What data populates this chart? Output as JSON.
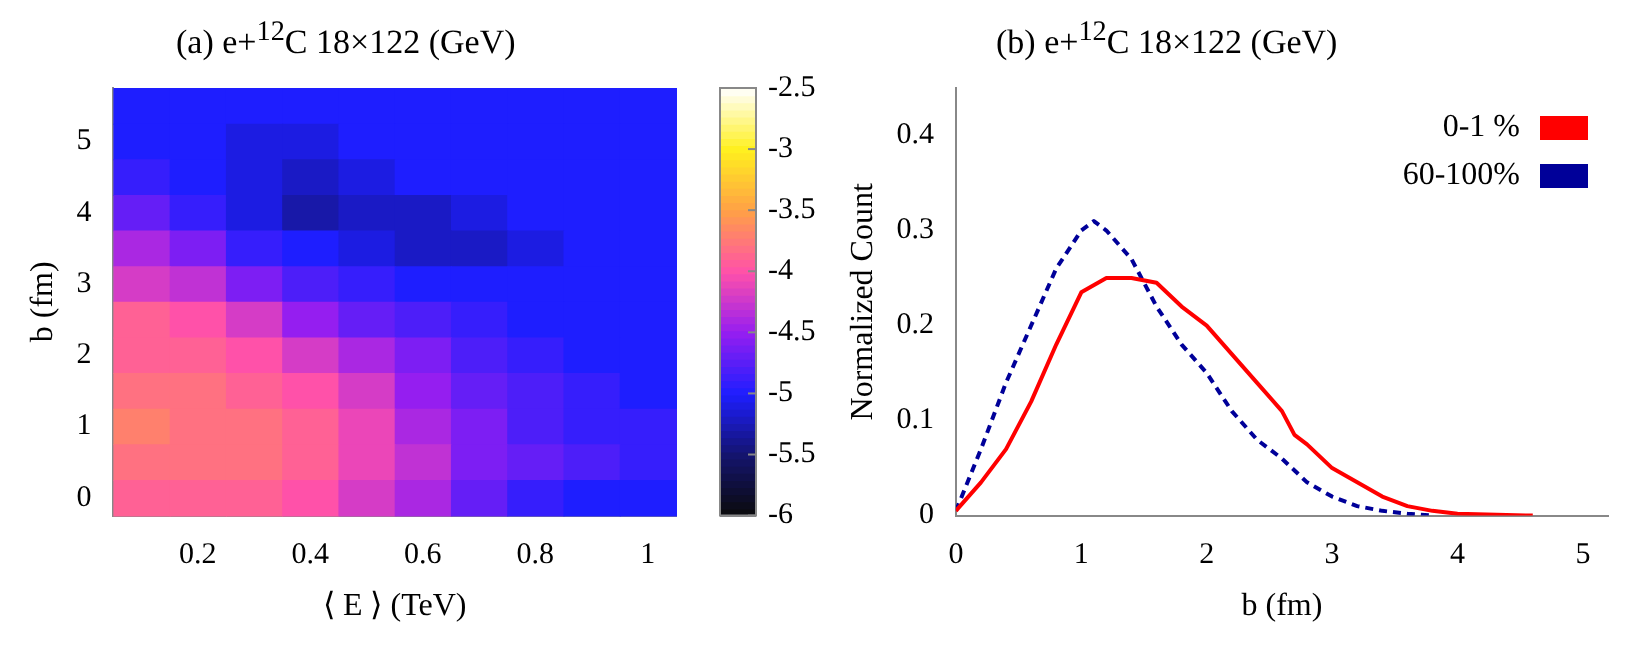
{
  "chart_data": [
    {
      "type": "heatmap",
      "title": "(a) e+$^{12}$C 18×122 (GeV)",
      "xlabel": "⟨ E ⟩ (TeV)",
      "ylabel": "b (fm)",
      "categories": [
        null,
        "0.2",
        null,
        "0.4",
        null,
        "0.6",
        null,
        "0.8",
        null,
        "1"
      ],
      "y_categories": [
        null,
        "5",
        null,
        "4",
        null,
        "3",
        null,
        "2",
        null,
        "1",
        null,
        "0"
      ],
      "cells": [
        [
          -5.0,
          -5.0,
          -5.0,
          -5.0,
          -5.0,
          -5.0,
          -5.0,
          -5.0,
          -5.0,
          -5.0
        ],
        [
          -5.0,
          -5.0,
          -5.1,
          -5.1,
          -5.0,
          -5.0,
          -5.0,
          -5.0,
          -5.0,
          -5.0
        ],
        [
          -4.9,
          -5.0,
          -5.1,
          -5.2,
          -5.1,
          -5.0,
          -5.0,
          -5.0,
          -5.0,
          -5.0
        ],
        [
          -4.7,
          -4.9,
          -5.1,
          -5.3,
          -5.2,
          -5.2,
          -5.1,
          -5.0,
          -5.0,
          -5.0
        ],
        [
          -4.4,
          -4.6,
          -4.9,
          -5.0,
          -5.1,
          -5.2,
          -5.2,
          -5.1,
          -5.0,
          -5.0
        ],
        [
          -4.2,
          -4.3,
          -4.6,
          -4.8,
          -4.9,
          -5.0,
          -5.0,
          -5.0,
          -5.0,
          -5.0
        ],
        [
          -3.9,
          -4.0,
          -4.2,
          -4.5,
          -4.7,
          -4.8,
          -4.9,
          -5.0,
          -5.0,
          -5.0
        ],
        [
          -3.9,
          -3.9,
          -4.0,
          -4.2,
          -4.4,
          -4.6,
          -4.8,
          -4.9,
          -5.0,
          -5.0
        ],
        [
          -3.8,
          -3.8,
          -3.9,
          -4.0,
          -4.2,
          -4.5,
          -4.7,
          -4.8,
          -4.9,
          -5.0
        ],
        [
          -3.7,
          -3.8,
          -3.8,
          -3.9,
          -4.1,
          -4.4,
          -4.6,
          -4.8,
          -4.9,
          -4.9
        ],
        [
          -3.8,
          -3.8,
          -3.8,
          -3.9,
          -4.1,
          -4.3,
          -4.6,
          -4.7,
          -4.8,
          -4.9
        ],
        [
          -3.9,
          -3.9,
          -3.9,
          -4.0,
          -4.2,
          -4.4,
          -4.7,
          -4.9,
          -5.0,
          -5.0
        ]
      ],
      "clim": [
        -6,
        -2.5
      ],
      "cticks": [
        -6,
        -5.5,
        -5,
        -4.5,
        -4,
        -3.5,
        -3,
        -2.5
      ],
      "grid": false
    },
    {
      "type": "line",
      "title": "(b) e+$^{12}$C 18×122 (GeV)",
      "xlabel": "b (fm)",
      "ylabel": "Normalized Count",
      "series": [
        {
          "name": "0-1 %",
          "color": "#ff0000",
          "line_style": "solid",
          "x": [
            0,
            0.2,
            0.4,
            0.5,
            0.6,
            0.8,
            1.0,
            1.2,
            1.4,
            1.6,
            1.8,
            2.0,
            2.2,
            2.4,
            2.6,
            2.7,
            2.8,
            3.0,
            3.2,
            3.4,
            3.6,
            3.8,
            4.0,
            4.6
          ],
          "values": [
            0.005,
            0.035,
            0.07,
            0.095,
            0.12,
            0.18,
            0.235,
            0.25,
            0.25,
            0.245,
            0.22,
            0.2,
            0.17,
            0.14,
            0.11,
            0.085,
            0.075,
            0.05,
            0.035,
            0.02,
            0.01,
            0.005,
            0.002,
            0
          ]
        },
        {
          "name": "60-100%",
          "color": "#000099",
          "line_style": "dashed",
          "x": [
            0,
            0.2,
            0.4,
            0.6,
            0.8,
            1.0,
            1.1,
            1.2,
            1.4,
            1.6,
            1.8,
            2.0,
            2.2,
            2.4,
            2.6,
            2.8,
            3.0,
            3.2,
            3.4,
            3.6,
            3.8
          ],
          "values": [
            0.005,
            0.07,
            0.14,
            0.2,
            0.26,
            0.3,
            0.31,
            0.3,
            0.27,
            0.22,
            0.18,
            0.15,
            0.11,
            0.08,
            0.06,
            0.035,
            0.02,
            0.01,
            0.005,
            0.002,
            0
          ]
        }
      ],
      "xlim": [
        0,
        5.2
      ],
      "xticks": [
        0,
        1,
        2,
        3,
        4,
        5
      ],
      "ylim": [
        0,
        0.45
      ],
      "yticks": [
        0,
        0.1,
        0.2,
        0.3,
        0.4
      ],
      "legend": "top right",
      "grid": false
    }
  ]
}
